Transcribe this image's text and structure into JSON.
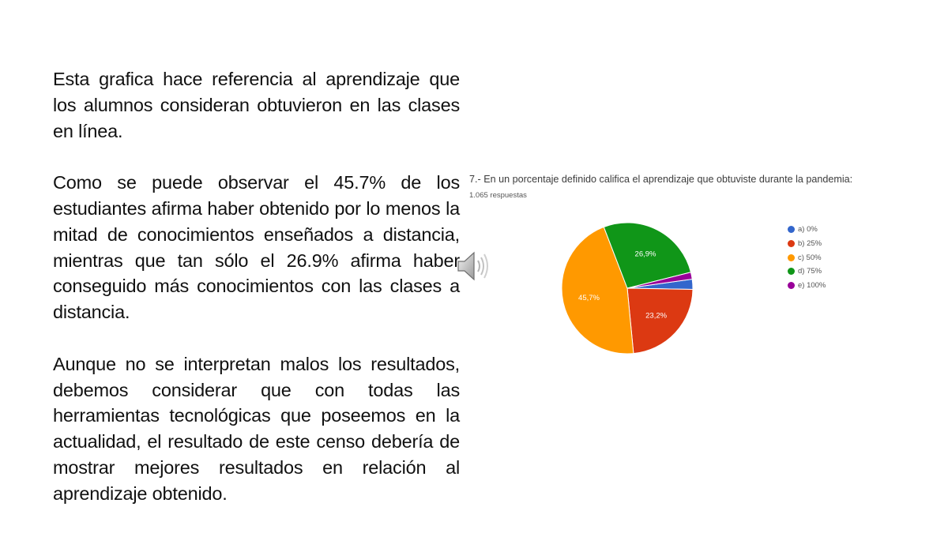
{
  "body_text": {
    "paragraph_1": "Esta grafica hace referencia al aprendizaje que los alumnos consideran obtuvieron en las clases en línea.",
    "paragraph_2": "Como se puede observar el 45.7% de los estudiantes afirma haber obtenido por lo menos la mitad de conocimientos enseñados a distancia, mientras que tan sólo el 26.9% afirma haber conseguido más conocimientos con las clases a distancia.",
    "paragraph_3": "Aunque no se interpretan malos los resultados, debemos considerar que con todas las herramientas tecnológicas que poseemos en la actualidad, el resultado de este censo debería de mostrar mejores resultados en relación al aprendizaje obtenido."
  },
  "icons": {
    "audio": "speaker-icon"
  },
  "chart_data": {
    "type": "pie",
    "title": "7.- En un porcentaje definido califica el aprendizaje que obtuviste durante la pandemia:",
    "subtitle": "1.065 respuestas",
    "legend_position": "right",
    "categories": [
      "a) 0%",
      "b) 25%",
      "c) 50%",
      "d) 75%",
      "e) 100%"
    ],
    "values": [
      2.5,
      23.2,
      45.7,
      26.9,
      1.7
    ],
    "data_labels": [
      "",
      "23,2%",
      "45,7%",
      "26,9%",
      ""
    ],
    "colors": [
      "#3366cc",
      "#dc3912",
      "#ff9900",
      "#109618",
      "#990099"
    ]
  }
}
